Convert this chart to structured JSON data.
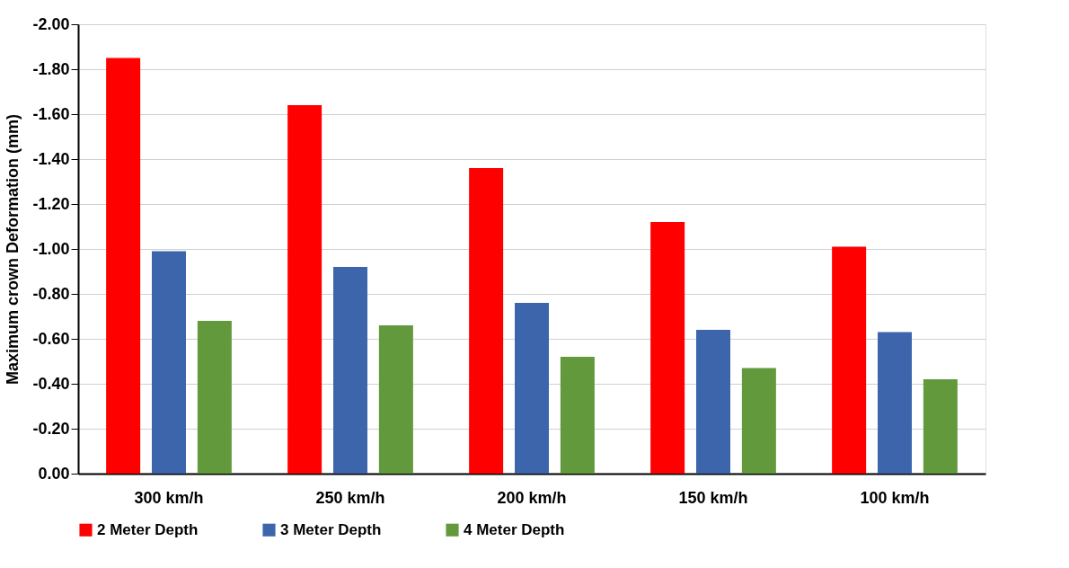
{
  "chart_data": {
    "type": "bar",
    "ylabel": "Maximum crown Deformation (mm)",
    "categories": [
      "300 km/h",
      "250 km/h",
      "200 km/h",
      "150 km/h",
      "100 km/h"
    ],
    "series": [
      {
        "name": "2 Meter Depth",
        "color": "#ff0000",
        "values": [
          -1.85,
          -1.64,
          -1.36,
          -1.12,
          -1.01
        ]
      },
      {
        "name": "3 Meter Depth",
        "color": "#3d65ac",
        "values": [
          -0.99,
          -0.92,
          -0.76,
          -0.64,
          -0.63
        ]
      },
      {
        "name": "4 Meter Depth",
        "color": "#63993d",
        "values": [
          -0.68,
          -0.66,
          -0.52,
          -0.47,
          -0.42
        ]
      }
    ],
    "ylim": [
      0,
      -2
    ],
    "yticks": [
      {
        "value": 0,
        "label": "0.00"
      },
      {
        "value": -0.2,
        "label": "-0.20"
      },
      {
        "value": -0.4,
        "label": "-0.40"
      },
      {
        "value": -0.6,
        "label": "-0.60"
      },
      {
        "value": -0.8,
        "label": "-0.80"
      },
      {
        "value": -1,
        "label": "-1.00"
      },
      {
        "value": -1.2,
        "label": "-1.20"
      },
      {
        "value": -1.4,
        "label": "-1.40"
      },
      {
        "value": -1.6,
        "label": "-1.60"
      },
      {
        "value": -1.8,
        "label": "-1.80"
      },
      {
        "value": -2,
        "label": "-2.00"
      }
    ],
    "grid": "y",
    "legend": "bottom"
  }
}
